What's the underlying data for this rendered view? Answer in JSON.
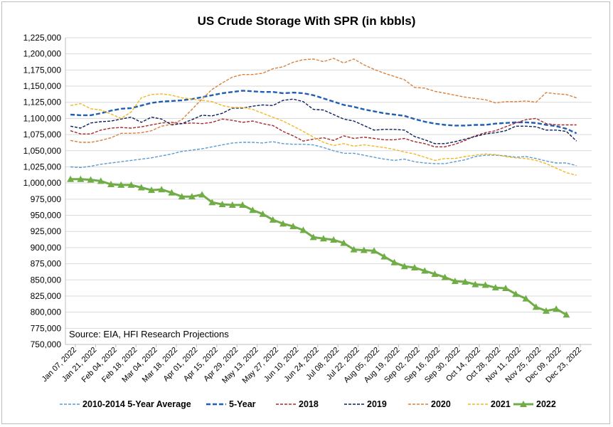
{
  "chart_data": {
    "type": "line",
    "title": "US Crude Storage With SPR (in kbbls)",
    "annotation": "Source: EIA, HFI Research Projections",
    "ylim": [
      750000,
      1225000
    ],
    "y_ticks": [
      "1,225,000",
      "1,200,000",
      "1,175,000",
      "1,150,000",
      "1,125,000",
      "1,100,000",
      "1,075,000",
      "1,050,000",
      "1,025,000",
      "1,000,000",
      "975,000",
      "950,000",
      "925,000",
      "900,000",
      "875,000",
      "850,000",
      "825,000",
      "800,000",
      "775,000",
      "750,000"
    ],
    "x_tick_labels": [
      "Jan 07, 2022",
      "Jan 21, 2022",
      "Feb 04, 2022",
      "Feb 18, 2022",
      "Mar 04, 2022",
      "Mar 18, 2022",
      "Apr 01, 2022",
      "Apr 15, 2022",
      "Apr 29, 2022",
      "May 13, 2022",
      "May 27, 2022",
      "Jun 10, 2022",
      "Jun 24, 2022",
      "Jul 08, 2022",
      "Jul 22, 2022",
      "Aug 05, 2022",
      "Aug 19, 2022",
      "Sep 02, 2022",
      "Sep 16, 2022",
      "Sep 30, 2022",
      "Oct 14, 2022",
      "Oct 28, 2022",
      "Nov 11, 2022",
      "Nov 25, 2022",
      "Dec 09, 2022",
      "Dec 23, 2022"
    ],
    "grid": true,
    "legend_position": "bottom",
    "series": [
      {
        "name": "2010-2014 5-Year Average",
        "color": "#5b9bd5",
        "style": "dash",
        "values": [
          1025000,
          1024000,
          1026000,
          1029000,
          1031000,
          1033000,
          1035000,
          1037000,
          1039000,
          1042000,
          1045000,
          1049000,
          1051000,
          1053000,
          1056000,
          1059000,
          1062000,
          1063000,
          1063000,
          1062000,
          1064000,
          1061000,
          1060000,
          1060000,
          1059000,
          1055000,
          1050000,
          1046000,
          1046000,
          1043000,
          1040000,
          1037000,
          1035000,
          1037000,
          1033000,
          1031000,
          1030000,
          1030000,
          1033000,
          1036000,
          1041000,
          1043000,
          1043000,
          1042000,
          1040000,
          1041000,
          1038000,
          1034000,
          1031000,
          1031000,
          1027000
        ]
      },
      {
        "name": "5-Year",
        "color": "#1f5fb5",
        "style": "dash-bold",
        "values": [
          1106000,
          1105000,
          1105000,
          1108000,
          1112000,
          1115000,
          1116000,
          1120000,
          1124000,
          1126000,
          1127000,
          1128000,
          1130000,
          1133000,
          1136000,
          1139000,
          1141000,
          1143000,
          1142000,
          1141000,
          1141000,
          1139000,
          1140000,
          1139000,
          1136000,
          1131000,
          1126000,
          1121000,
          1118000,
          1114000,
          1111000,
          1108000,
          1106000,
          1104000,
          1099000,
          1095000,
          1092000,
          1090000,
          1089000,
          1089000,
          1090000,
          1090000,
          1092000,
          1093000,
          1094000,
          1094000,
          1093000,
          1090000,
          1088000,
          1084000,
          1077000
        ]
      },
      {
        "name": "2018",
        "color": "#a52a2a",
        "style": "dash",
        "values": [
          1081000,
          1076000,
          1076000,
          1082000,
          1085000,
          1086000,
          1085000,
          1087000,
          1090000,
          1093000,
          1094000,
          1092000,
          1093000,
          1092000,
          1094000,
          1099000,
          1097000,
          1094000,
          1096000,
          1092000,
          1089000,
          1080000,
          1073000,
          1065000,
          1068000,
          1070000,
          1066000,
          1073000,
          1069000,
          1071000,
          1069000,
          1067000,
          1067000,
          1069000,
          1064000,
          1061000,
          1056000,
          1056000,
          1060000,
          1066000,
          1073000,
          1078000,
          1081000,
          1087000,
          1093000,
          1098000,
          1100000,
          1092000,
          1090000,
          1090000,
          1090000
        ]
      },
      {
        "name": "2019",
        "color": "#0b1f5c",
        "style": "dash",
        "values": [
          1088000,
          1085000,
          1093000,
          1095000,
          1096000,
          1099000,
          1102000,
          1094000,
          1102000,
          1099000,
          1090000,
          1092000,
          1098000,
          1105000,
          1104000,
          1108000,
          1116000,
          1116000,
          1119000,
          1121000,
          1120000,
          1128000,
          1130000,
          1126000,
          1114000,
          1113000,
          1106000,
          1099000,
          1096000,
          1089000,
          1082000,
          1083000,
          1083000,
          1082000,
          1072000,
          1067000,
          1061000,
          1061000,
          1064000,
          1068000,
          1072000,
          1076000,
          1078000,
          1081000,
          1088000,
          1088000,
          1087000,
          1082000,
          1082000,
          1080000,
          1065000
        ]
      },
      {
        "name": "2020",
        "color": "#d9803a",
        "style": "dash",
        "values": [
          1066000,
          1063000,
          1063000,
          1066000,
          1070000,
          1077000,
          1077000,
          1078000,
          1081000,
          1088000,
          1091000,
          1098000,
          1114000,
          1130000,
          1145000,
          1155000,
          1164000,
          1168000,
          1168000,
          1170000,
          1177000,
          1180000,
          1187000,
          1191000,
          1192000,
          1188000,
          1193000,
          1186000,
          1192000,
          1183000,
          1176000,
          1170000,
          1165000,
          1160000,
          1148000,
          1147000,
          1142000,
          1139000,
          1136000,
          1133000,
          1131000,
          1129000,
          1124000,
          1126000,
          1126000,
          1127000,
          1125000,
          1140000,
          1138000,
          1137000,
          1132000
        ]
      },
      {
        "name": "2021",
        "color": "#f2b822",
        "style": "dash",
        "values": [
          1120000,
          1123000,
          1115000,
          1113000,
          1107000,
          1100000,
          1110000,
          1132000,
          1137000,
          1138000,
          1136000,
          1132000,
          1130000,
          1128000,
          1126000,
          1120000,
          1117000,
          1117000,
          1114000,
          1108000,
          1102000,
          1096000,
          1088000,
          1080000,
          1071000,
          1063000,
          1058000,
          1061000,
          1057000,
          1059000,
          1057000,
          1055000,
          1052000,
          1048000,
          1045000,
          1040000,
          1035000,
          1038000,
          1038000,
          1041000,
          1043000,
          1045000,
          1044000,
          1041000,
          1039000,
          1038000,
          1035000,
          1030000,
          1023000,
          1016000,
          1012000
        ]
      },
      {
        "name": "2022",
        "color": "#71ad47",
        "style": "solid-marker",
        "values": [
          1006000,
          1006000,
          1005000,
          1003000,
          998000,
          997000,
          997000,
          993000,
          989000,
          990000,
          985000,
          979000,
          979000,
          982000,
          970000,
          967000,
          966000,
          966000,
          958000,
          952000,
          943000,
          937000,
          933000,
          927000,
          916000,
          914000,
          912000,
          907000,
          897000,
          896000,
          895000,
          886000,
          877000,
          871000,
          869000,
          864000,
          859000,
          854000,
          848000,
          847000,
          843000,
          842000,
          838000,
          837000,
          828000,
          821000,
          808000,
          802000,
          805000,
          796000
        ]
      }
    ]
  }
}
